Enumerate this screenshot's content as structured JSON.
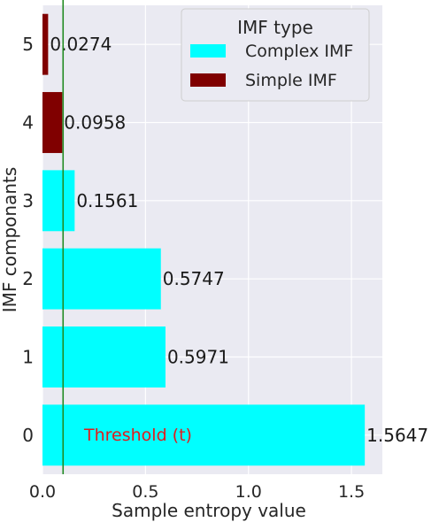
{
  "chart_data": {
    "type": "bar",
    "orientation": "horizontal",
    "categories": [
      "0",
      "1",
      "2",
      "3",
      "4",
      "5"
    ],
    "values": [
      1.5647,
      0.5971,
      0.5747,
      0.1561,
      0.0958,
      0.0274
    ],
    "value_labels": [
      "1.5647",
      "0.5971",
      "0.5747",
      "0.1561",
      "0.0958",
      "0.0274"
    ],
    "bar_types": [
      "Complex IMF",
      "Complex IMF",
      "Complex IMF",
      "Complex IMF",
      "Simple IMF",
      "Simple IMF"
    ],
    "xlabel": "Sample entropy value",
    "ylabel": "IMF componants",
    "xlim": [
      0,
      1.65
    ],
    "xticks": [
      0.0,
      0.5,
      1.0,
      1.5
    ],
    "xtick_labels": [
      "0.0",
      "0.5",
      "1.0",
      "1.5"
    ],
    "threshold": 0.1,
    "threshold_label": "Threshold (t)",
    "grid": true,
    "legend": {
      "title": "IMF type",
      "placement": "top-right",
      "entries": [
        {
          "label": "Complex IMF",
          "color": "#00ffff"
        },
        {
          "label": "Simple IMF",
          "color": "#800000"
        }
      ]
    },
    "colors": {
      "complex": "#00ffff",
      "simple": "#800000",
      "threshold_line": "#228b22",
      "threshold_text": "#e31a1c",
      "plot_bg": "#eaeaf2",
      "grid": "#ffffff"
    }
  }
}
